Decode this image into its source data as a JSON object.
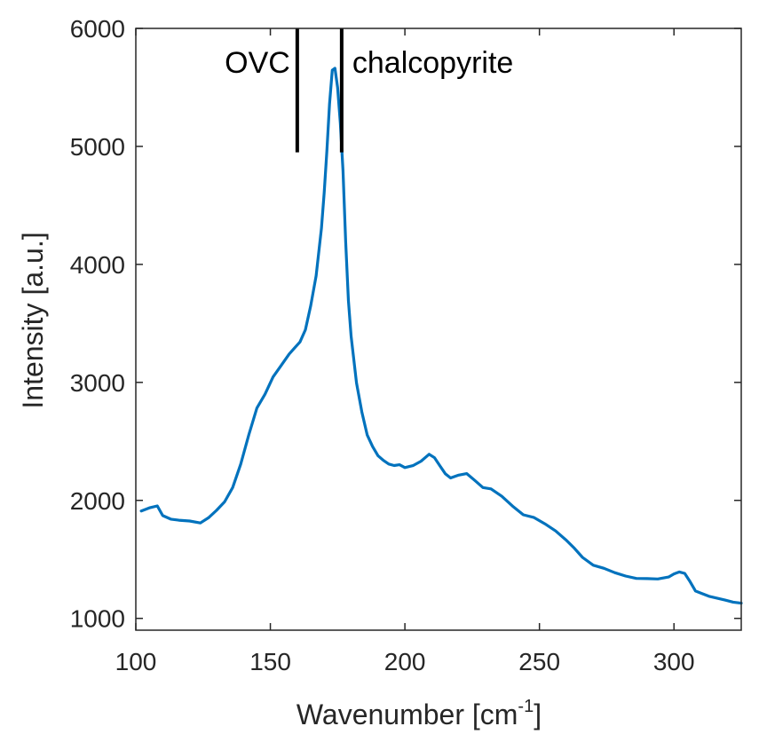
{
  "chart_data": {
    "type": "line",
    "xlabel": "Wavenumber [cm",
    "xlabel_sup": "-1",
    "xlabel_end": "]",
    "ylabel": "Intensity [a.u.]",
    "xlim": [
      100,
      325
    ],
    "ylim": [
      900,
      6000
    ],
    "x_ticks": [
      100,
      150,
      200,
      250,
      300
    ],
    "y_ticks": [
      1000,
      2000,
      3000,
      4000,
      5000,
      6000
    ],
    "grid": false,
    "line_color": "#0072BD",
    "series": [
      {
        "x": [
          102,
          105,
          108,
          110,
          113,
          116,
          120,
          124,
          127,
          130,
          133,
          136,
          139,
          142,
          145,
          148,
          151,
          154,
          157,
          159,
          161,
          163,
          165,
          167,
          169,
          170,
          171,
          172,
          173,
          174,
          175,
          176,
          177,
          178,
          179,
          180,
          182,
          184,
          186,
          188,
          190,
          192,
          194,
          196,
          198,
          200,
          203,
          206,
          209,
          211,
          213,
          215,
          217,
          220,
          223,
          226,
          229,
          232,
          236,
          240,
          244,
          248,
          252,
          256,
          260,
          263,
          266,
          270,
          274,
          278,
          282,
          286,
          290,
          294,
          298,
          300,
          302,
          304,
          306,
          308,
          310,
          313,
          316,
          319,
          322,
          325
        ],
        "y": [
          1910,
          1940,
          1960,
          1880,
          1850,
          1840,
          1830,
          1810,
          1850,
          1910,
          1980,
          2100,
          2300,
          2550,
          2780,
          2900,
          3050,
          3150,
          3250,
          3300,
          3350,
          3450,
          3650,
          3900,
          4300,
          4600,
          4950,
          5350,
          5640,
          5660,
          5500,
          5200,
          4800,
          4200,
          3700,
          3400,
          3000,
          2750,
          2550,
          2450,
          2370,
          2330,
          2300,
          2290,
          2300,
          2280,
          2300,
          2340,
          2400,
          2370,
          2300,
          2230,
          2190,
          2210,
          2220,
          2160,
          2100,
          2090,
          2030,
          1950,
          1880,
          1860,
          1810,
          1750,
          1670,
          1600,
          1520,
          1450,
          1420,
          1380,
          1350,
          1330,
          1330,
          1330,
          1350,
          1380,
          1400,
          1390,
          1320,
          1240,
          1220,
          1190,
          1170,
          1150,
          1130,
          1120
        ]
      }
    ],
    "annotations": [
      {
        "label": "OVC",
        "x": 160,
        "y_top": 6000,
        "y_bottom": 4950,
        "side": "left"
      },
      {
        "label": "chalcopyrite",
        "x": 176.5,
        "y_top": 6000,
        "y_bottom": 4950,
        "side": "right"
      }
    ]
  }
}
